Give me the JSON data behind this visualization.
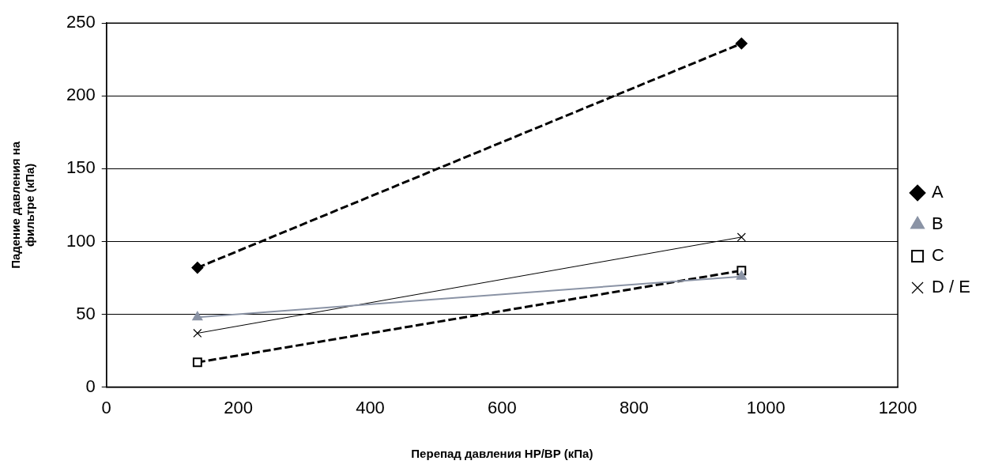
{
  "chart_data": {
    "type": "line",
    "xlabel": "Перепад давления НР/ВР (кПа)",
    "ylabel": "Падение давления на фильтре (кПа)",
    "xlim": [
      0,
      1200
    ],
    "xticks": [
      0,
      200,
      400,
      600,
      800,
      1000,
      1200
    ],
    "ylim": [
      0,
      250
    ],
    "yticks": [
      0,
      50,
      100,
      150,
      200,
      250
    ],
    "grid": "y",
    "legend": "right",
    "x": [
      138,
      963
    ],
    "series": [
      {
        "name": "A",
        "color": "#000000",
        "marker": "diamond",
        "line_style": "dashed",
        "values": [
          82,
          236
        ]
      },
      {
        "name": "B",
        "color": "#8a93a5",
        "marker": "triangle",
        "line_style": "solid",
        "values": [
          48,
          76
        ]
      },
      {
        "name": "C",
        "color": "#000000",
        "marker": "square",
        "line_style": "dashed",
        "values": [
          17,
          80
        ]
      },
      {
        "name": "D / E",
        "color": "#000000",
        "marker": "cross",
        "line_style": "solid",
        "values": [
          37,
          103
        ]
      }
    ]
  }
}
